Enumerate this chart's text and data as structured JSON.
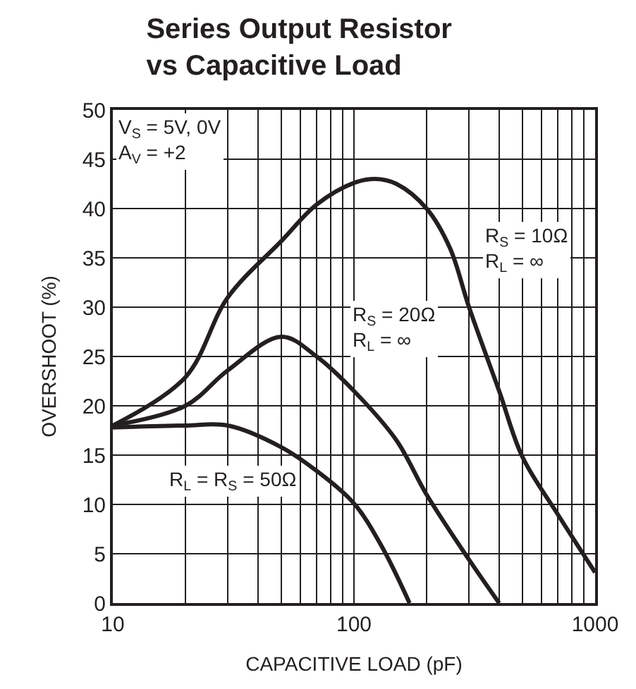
{
  "chart_data": {
    "type": "line",
    "title": "Series Output Resistor\nvs Capacitive Load",
    "xlabel": "CAPACITIVE LOAD (pF)",
    "ylabel": "OVERSHOOT (%)",
    "log": "x",
    "xlim": [
      10,
      1000
    ],
    "xticks": [
      10,
      100,
      1000,
      {
        "value": 20,
        "label": null
      },
      {
        "value": 30,
        "label": null
      },
      {
        "value": 40,
        "label": null
      },
      {
        "value": 50,
        "label": null
      },
      {
        "value": 60,
        "label": null
      },
      {
        "value": 70,
        "label": null
      },
      {
        "value": 80,
        "label": null
      },
      {
        "value": 90,
        "label": null
      },
      {
        "value": 200,
        "label": null
      },
      {
        "value": 300,
        "label": null
      },
      {
        "value": 400,
        "label": null
      },
      {
        "value": 500,
        "label": null
      },
      {
        "value": 600,
        "label": null
      },
      {
        "value": 700,
        "label": null
      },
      {
        "value": 800,
        "label": null
      },
      {
        "value": 900,
        "label": null
      }
    ],
    "ylim": [
      0,
      50
    ],
    "yticks": [
      0,
      5,
      10,
      15,
      20,
      25,
      30,
      35,
      40,
      45,
      50
    ],
    "grid": true,
    "legend": false,
    "marker": "none",
    "line_style": "solid",
    "annotations": [
      "V$_{S}$ = 5V, 0V\nA$_{V}$ = +2"
    ],
    "series": [
      {
        "name": "R$_{S}$ = 10Ω\nR$_{L}$ = ∞",
        "color": "#231f20",
        "x": [
          10,
          20,
          30,
          50,
          70,
          100,
          123,
          150,
          200,
          250,
          300,
          400,
          500,
          700,
          1000
        ],
        "values": [
          18,
          22.9,
          31,
          36.7,
          40.4,
          42.6,
          43,
          42.5,
          40,
          36,
          30,
          21.5,
          14.8,
          9,
          3.1
        ]
      },
      {
        "name": "R$_{S}$ = 20Ω\nR$_{L}$ = ∞",
        "color": "#231f20",
        "x": [
          10,
          20,
          30,
          50,
          70,
          100,
          150,
          200,
          300,
          400
        ],
        "values": [
          18,
          20,
          23.6,
          27,
          25,
          21.5,
          16.5,
          11,
          4.4,
          0
        ]
      },
      {
        "name": "R$_{L}$ = R$_{S}$ = 50Ω",
        "color": "#231f20",
        "x": [
          10,
          20,
          30,
          50,
          70,
          100,
          130,
          170
        ],
        "values": [
          17.8,
          18,
          18,
          15.8,
          13.4,
          10.1,
          5.8,
          0
        ]
      }
    ]
  }
}
